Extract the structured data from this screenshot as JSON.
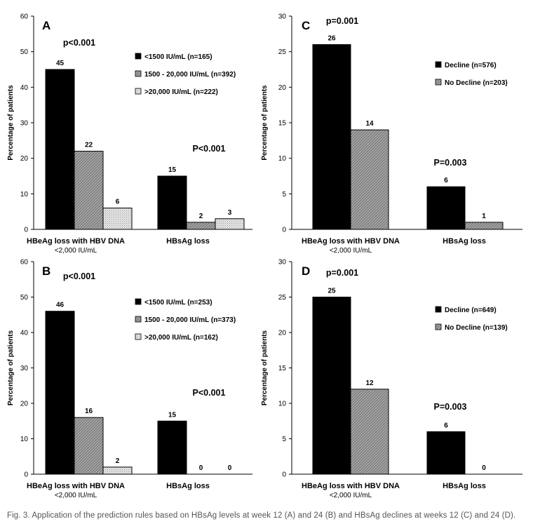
{
  "caption": "Fig. 3. Application of the prediction rules based on HBsAg levels at week 12 (A) and 24 (B) and HBsAg declines at weeks 12 (C) and 24 (D).",
  "colors": {
    "black": "#000000",
    "hatched": "#9a9a9a",
    "dotted": "#d9d9d9"
  },
  "chart_data": [
    {
      "panel": "A",
      "type": "bar",
      "ylabel": "Percentage of patients",
      "ylim": [
        0,
        60
      ],
      "yticks": [
        0,
        10,
        20,
        30,
        40,
        50,
        60
      ],
      "categories": [
        "HBeAg loss with HBV DNA\n<2,000 IU/mL",
        "HBsAg loss"
      ],
      "series": [
        {
          "name": "<1500 IU/mL (n=165)",
          "pattern": "solid",
          "values": [
            45,
            15
          ]
        },
        {
          "name": "1500 - 20,000 IU/mL (n=392)",
          "pattern": "hatch",
          "values": [
            22,
            2
          ]
        },
        {
          "name": ">20,000 IU/mL (n=222)",
          "pattern": "dots",
          "values": [
            6,
            3
          ]
        }
      ],
      "annotations": [
        "p<0.001",
        "P<0.001"
      ],
      "legend": "upper-right"
    },
    {
      "panel": "C",
      "type": "bar",
      "ylabel": "Percentage of patients",
      "ylim": [
        0,
        30
      ],
      "yticks": [
        0,
        5,
        10,
        15,
        20,
        25,
        30
      ],
      "categories": [
        "HBeAg loss with HBV DNA\n<2,000 IU/mL",
        "HBsAg loss"
      ],
      "series": [
        {
          "name": "Decline (n=576)",
          "pattern": "solid",
          "values": [
            26,
            6
          ]
        },
        {
          "name": "No Decline (n=203)",
          "pattern": "hatch",
          "values": [
            14,
            1
          ]
        }
      ],
      "annotations": [
        "p=0.001",
        "P=0.003"
      ],
      "legend": "upper-right"
    },
    {
      "panel": "B",
      "type": "bar",
      "ylabel": "Percentage of patients",
      "ylim": [
        0,
        60
      ],
      "yticks": [
        0,
        10,
        20,
        30,
        40,
        50,
        60
      ],
      "categories": [
        "HBeAg loss with HBV DNA\n<2,000 IU/mL",
        "HBsAg loss"
      ],
      "series": [
        {
          "name": "<1500 IU/mL (n=253)",
          "pattern": "solid",
          "values": [
            46,
            15
          ]
        },
        {
          "name": "1500 - 20,000 IU/mL (n=373)",
          "pattern": "hatch",
          "values": [
            16,
            0
          ]
        },
        {
          "name": ">20,000 IU/mL (n=162)",
          "pattern": "dots",
          "values": [
            2,
            0
          ]
        }
      ],
      "annotations": [
        "p<0.001",
        "P<0.001"
      ],
      "legend": "upper-right"
    },
    {
      "panel": "D",
      "type": "bar",
      "ylabel": "Percentage of patients",
      "ylim": [
        0,
        30
      ],
      "yticks": [
        0,
        5,
        10,
        15,
        20,
        25,
        30
      ],
      "categories": [
        "HBeAg loss with HBV DNA\n<2,000 IU/mL",
        "HBsAg loss"
      ],
      "series": [
        {
          "name": "Decline (n=649)",
          "pattern": "solid",
          "values": [
            25,
            6
          ]
        },
        {
          "name": "No Decline (n=139)",
          "pattern": "hatch",
          "values": [
            12,
            0
          ]
        }
      ],
      "annotations": [
        "p=0.001",
        "P=0.003"
      ],
      "legend": "upper-right"
    }
  ]
}
